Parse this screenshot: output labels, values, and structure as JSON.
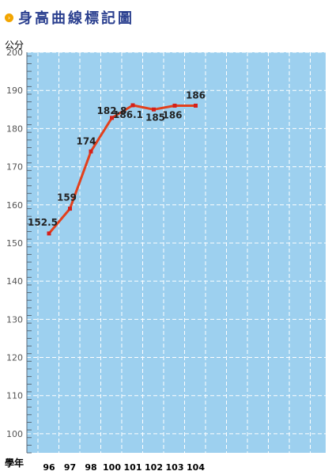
{
  "header": {
    "title": "身高曲線標記圖",
    "icon": "circle-chevron-icon"
  },
  "colors": {
    "plot_bg": "#9dd0ef",
    "grid": "#ffffff",
    "line": "#e2401c",
    "point": "#d5201a",
    "title": "#2a3f8f"
  },
  "chart_data": {
    "type": "line",
    "title": "身高曲線標記圖",
    "ylabel": "公分",
    "xlabel": "學年",
    "ylim": [
      95,
      200
    ],
    "yticks": [
      100,
      110,
      120,
      130,
      140,
      150,
      160,
      170,
      180,
      190,
      200
    ],
    "categories": [
      "96",
      "97",
      "98",
      "100",
      "101",
      "102",
      "103",
      "104"
    ],
    "values": [
      152.5,
      159,
      174,
      182.8,
      186.1,
      185,
      186,
      186
    ],
    "labels": [
      "152.5",
      "159",
      "174",
      "182.8",
      "186.1",
      "185",
      "186",
      "186"
    ],
    "grid": true,
    "legend": "none"
  }
}
